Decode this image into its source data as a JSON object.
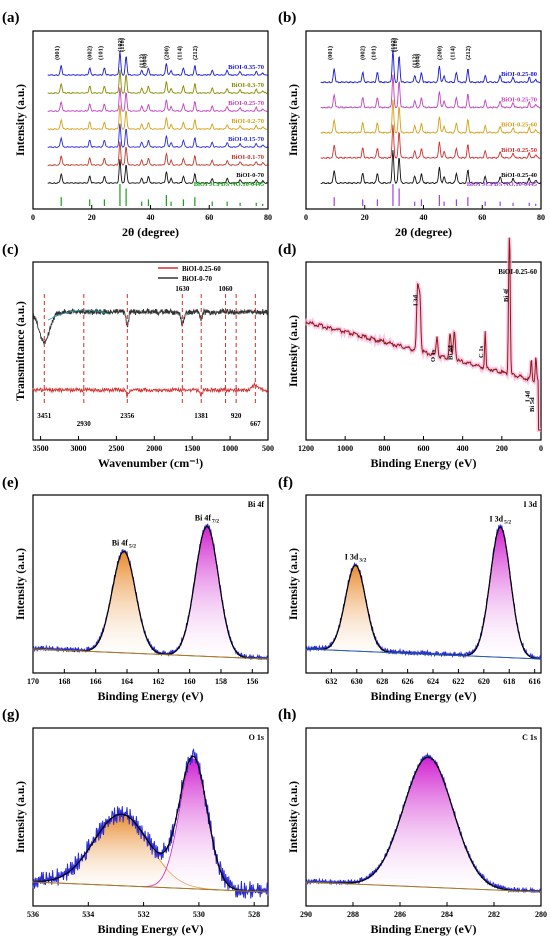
{
  "chart_data": [
    {
      "id": "a",
      "type": "line",
      "panel_label": "(a)",
      "xlabel": "2θ (degree)",
      "ylabel": "Intensity (a.u.)",
      "xlim": [
        0,
        80
      ],
      "xticks": [
        0,
        20,
        40,
        60,
        80
      ],
      "peaks": [
        {
          "label": "(001)",
          "x": 9.6
        },
        {
          "label": "(002)",
          "x": 19.3
        },
        {
          "label": "(101)",
          "x": 24.3
        },
        {
          "label": "(102)",
          "x": 29.6
        },
        {
          "label": "(110)",
          "x": 31.7
        },
        {
          "label": "(112)",
          "x": 37.0
        },
        {
          "label": "(004)",
          "x": 39.3
        },
        {
          "label": "(200)",
          "x": 45.4
        },
        {
          "label": "(114)",
          "x": 51.2
        },
        {
          "label": "(212)",
          "x": 55.1
        }
      ],
      "series": [
        {
          "name": "BiOI-0.35-70",
          "color": "#1a1ad6"
        },
        {
          "name": "BiOI-0.3-70",
          "color": "#8a8a00"
        },
        {
          "name": "BiOI-0.25-70",
          "color": "#c043c0"
        },
        {
          "name": "BiOI-0.2-70",
          "color": "#d4a017"
        },
        {
          "name": "BiOI-0.15-70",
          "color": "#2b2bd8"
        },
        {
          "name": "BiOI-0.1-70",
          "color": "#c0392b"
        },
        {
          "name": "BiOI-0-70",
          "color": "#111111"
        }
      ],
      "reference": {
        "name": "BiOI JCPDS NO.10-0445",
        "color": "#18a018",
        "x": [
          9.6,
          19.3,
          24.3,
          29.6,
          31.7,
          37.0,
          39.3,
          45.4,
          47.0,
          51.2,
          55.1,
          61.0,
          66.1,
          70.5,
          76.0,
          78.2
        ],
        "h": [
          0.4,
          0.3,
          0.3,
          1.0,
          0.8,
          0.2,
          0.3,
          0.5,
          0.2,
          0.3,
          0.4,
          0.2,
          0.2,
          0.15,
          0.15,
          0.1
        ]
      }
    },
    {
      "id": "b",
      "type": "line",
      "panel_label": "(b)",
      "xlabel": "2θ (degree)",
      "ylabel": "Intensity (a.u.)",
      "xlim": [
        0,
        80
      ],
      "xticks": [
        0,
        20,
        40,
        60,
        80
      ],
      "peaks": [
        {
          "label": "(001)",
          "x": 9.6
        },
        {
          "label": "(002)",
          "x": 19.3
        },
        {
          "label": "(101)",
          "x": 24.3
        },
        {
          "label": "(102)",
          "x": 29.6
        },
        {
          "label": "(110)",
          "x": 31.7
        },
        {
          "label": "(112)",
          "x": 37.0
        },
        {
          "label": "(004)",
          "x": 39.3
        },
        {
          "label": "(200)",
          "x": 45.4
        },
        {
          "label": "(114)",
          "x": 51.2
        },
        {
          "label": "(212)",
          "x": 55.1
        }
      ],
      "series": [
        {
          "name": "BiOI-0.25-80",
          "color": "#1a1ad6"
        },
        {
          "name": "BiOI-0.25-70",
          "color": "#c043c0"
        },
        {
          "name": "BiOI-0.25-60",
          "color": "#d4a017"
        },
        {
          "name": "BiOI-0.25-50",
          "color": "#d03030"
        },
        {
          "name": "BiOI-0.25-40",
          "color": "#111111"
        }
      ],
      "reference": {
        "name": "BiOI JCPDS NO.10-0445",
        "color": "#a040e0",
        "x": [
          9.6,
          19.3,
          24.3,
          29.6,
          31.7,
          37.0,
          39.3,
          45.4,
          47.0,
          51.2,
          55.1,
          61.0,
          66.1,
          70.5,
          76.0,
          78.2
        ],
        "h": [
          0.4,
          0.3,
          0.3,
          1.0,
          0.8,
          0.2,
          0.3,
          0.5,
          0.2,
          0.3,
          0.4,
          0.2,
          0.2,
          0.15,
          0.15,
          0.1
        ]
      }
    },
    {
      "id": "c",
      "type": "line",
      "panel_label": "(c)",
      "xlabel": "Wavenumber (cm⁻¹)",
      "ylabel": "Transmittance (a.u.)",
      "xlim": [
        3600,
        500
      ],
      "xticks": [
        3500,
        3000,
        2500,
        2000,
        1500,
        1000,
        500
      ],
      "legend": [
        {
          "name": "BiOI-0.25-60",
          "color": "#d03030"
        },
        {
          "name": "BiOI-0-70",
          "color": "#333333"
        }
      ],
      "markers": [
        {
          "x": 3451,
          "label": "3451"
        },
        {
          "x": 2930,
          "label": "2930"
        },
        {
          "x": 2356,
          "label": "2356"
        },
        {
          "x": 1630,
          "label": "1630"
        },
        {
          "x": 1381,
          "label": "1381"
        },
        {
          "x": 1060,
          "label": "1060"
        },
        {
          "x": 920,
          "label": "920"
        },
        {
          "x": 667,
          "label": "667"
        }
      ]
    },
    {
      "id": "d",
      "type": "line",
      "panel_label": "(d)",
      "title": "BiOI-0.25-60",
      "xlabel": "Binding Energy (eV)",
      "ylabel": "Intensity (a.u.)",
      "xlim": [
        1200,
        0
      ],
      "xticks": [
        1200,
        1000,
        800,
        600,
        400,
        200,
        0
      ],
      "annotations": [
        {
          "label": "I 3d",
          "x": 620
        },
        {
          "label": "O 1s",
          "x": 531
        },
        {
          "label": "Bi 4d",
          "x": 442
        },
        {
          "label": "C 1s",
          "x": 285
        },
        {
          "label": "Bi 4f",
          "x": 159
        },
        {
          "label": "I 4d",
          "x": 49
        },
        {
          "label": "Bi 5d",
          "x": 26
        }
      ]
    },
    {
      "id": "e",
      "type": "line",
      "panel_label": "(e)",
      "title": "Bi 4f",
      "xlabel": "Binding Energy (eV)",
      "ylabel": "Intensity (a.u.)",
      "xlim": [
        170,
        155
      ],
      "xticks": [
        170,
        168,
        166,
        164,
        162,
        160,
        158,
        156
      ],
      "peaks": [
        {
          "label": "Bi 4f",
          "sub": "5/2",
          "center": 164.2,
          "height": 0.78,
          "width": 0.75,
          "color": "#e8892a"
        },
        {
          "label": "Bi 4f",
          "sub": "7/2",
          "center": 158.9,
          "height": 1.0,
          "width": 0.75,
          "color": "#d020d0"
        }
      ]
    },
    {
      "id": "f",
      "type": "line",
      "panel_label": "(f)",
      "title": "I 3d",
      "xlabel": "Binding Energy (eV)",
      "ylabel": "Intensity (a.u.)",
      "xlim": [
        634,
        615.5
      ],
      "xticks": [
        632,
        630,
        628,
        626,
        624,
        622,
        620,
        618,
        616
      ],
      "peaks": [
        {
          "label": "I 3d",
          "sub": "3/2",
          "center": 630.1,
          "height": 0.66,
          "width": 0.8,
          "color": "#e8892a"
        },
        {
          "label": "I 3d",
          "sub": "5/2",
          "center": 618.7,
          "height": 1.0,
          "width": 0.8,
          "color": "#d020d0"
        }
      ]
    },
    {
      "id": "g",
      "type": "line",
      "panel_label": "(g)",
      "title": "O 1s",
      "xlabel": "Binding Energy (eV)",
      "ylabel": "Intensity (a.u.)",
      "xlim": [
        536,
        527.5
      ],
      "xticks": [
        536,
        534,
        532,
        530,
        528
      ],
      "peaks": [
        {
          "center": 532.8,
          "height": 0.55,
          "width": 1.0,
          "color": "#e8892a"
        },
        {
          "center": 530.2,
          "height": 1.0,
          "width": 0.5,
          "color": "#d020d0"
        }
      ]
    },
    {
      "id": "h",
      "type": "line",
      "panel_label": "(h)",
      "title": "C 1s",
      "xlabel": "Binding Energy (eV)",
      "ylabel": "Intensity (a.u.)",
      "xlim": [
        290,
        280
      ],
      "xticks": [
        290,
        288,
        286,
        284,
        282,
        280
      ],
      "peaks": [
        {
          "center": 284.8,
          "height": 1.0,
          "width": 1.05,
          "color": "#d020d0"
        }
      ]
    }
  ]
}
